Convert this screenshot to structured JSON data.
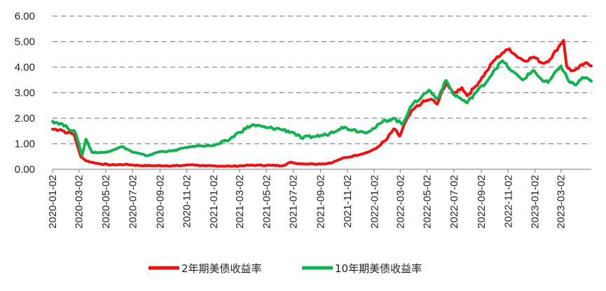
{
  "chart_data": {
    "type": "line",
    "title": "",
    "xlabel": "",
    "ylabel": "",
    "ylim": [
      0,
      6
    ],
    "grid": "horizontal dashed",
    "legend_position": "bottom",
    "y_ticks": [
      "0.00",
      "1.00",
      "2.00",
      "3.00",
      "4.00",
      "5.00",
      "6.00"
    ],
    "x_ticks": [
      "2020-01-02",
      "2020-03-02",
      "2020-05-02",
      "2020-07-02",
      "2020-09-02",
      "2020-11-02",
      "2021-01-02",
      "2021-03-02",
      "2021-05-02",
      "2021-07-02",
      "2021-09-02",
      "2021-11-02",
      "2022-01-02",
      "2022-03-02",
      "2022-05-02",
      "2022-07-02",
      "2022-09-02",
      "2022-11-02",
      "2023-01-02",
      "2023-03-02"
    ],
    "x_range": [
      "2020-01-02",
      "2023-05-10"
    ],
    "series": [
      {
        "name": "2年期美债收益率",
        "color": "#ee1111",
        "points": [
          [
            "2020-01-02",
            1.57
          ],
          [
            "2020-01-20",
            1.56
          ],
          [
            "2020-02-05",
            1.43
          ],
          [
            "2020-02-20",
            1.38
          ],
          [
            "2020-02-28",
            0.9
          ],
          [
            "2020-03-06",
            0.5
          ],
          [
            "2020-03-15",
            0.37
          ],
          [
            "2020-03-25",
            0.3
          ],
          [
            "2020-04-15",
            0.22
          ],
          [
            "2020-05-15",
            0.17
          ],
          [
            "2020-06-15",
            0.19
          ],
          [
            "2020-07-15",
            0.15
          ],
          [
            "2020-08-15",
            0.14
          ],
          [
            "2020-09-15",
            0.14
          ],
          [
            "2020-10-15",
            0.14
          ],
          [
            "2020-11-15",
            0.18
          ],
          [
            "2020-12-15",
            0.13
          ],
          [
            "2021-01-15",
            0.13
          ],
          [
            "2021-02-15",
            0.12
          ],
          [
            "2021-03-15",
            0.15
          ],
          [
            "2021-04-15",
            0.16
          ],
          [
            "2021-05-15",
            0.15
          ],
          [
            "2021-06-10",
            0.15
          ],
          [
            "2021-06-25",
            0.27
          ],
          [
            "2021-07-15",
            0.22
          ],
          [
            "2021-08-15",
            0.21
          ],
          [
            "2021-09-15",
            0.22
          ],
          [
            "2021-10-01",
            0.28
          ],
          [
            "2021-10-20",
            0.42
          ],
          [
            "2021-11-15",
            0.52
          ],
          [
            "2021-12-15",
            0.65
          ],
          [
            "2022-01-05",
            0.8
          ],
          [
            "2022-01-31",
            1.18
          ],
          [
            "2022-02-15",
            1.58
          ],
          [
            "2022-03-01",
            1.3
          ],
          [
            "2022-03-15",
            1.9
          ],
          [
            "2022-04-01",
            2.35
          ],
          [
            "2022-04-20",
            2.6
          ],
          [
            "2022-05-10",
            2.75
          ],
          [
            "2022-05-25",
            2.55
          ],
          [
            "2022-06-14",
            3.42
          ],
          [
            "2022-06-30",
            2.95
          ],
          [
            "2022-07-20",
            3.2
          ],
          [
            "2022-08-01",
            2.88
          ],
          [
            "2022-08-20",
            3.25
          ],
          [
            "2022-09-15",
            3.85
          ],
          [
            "2022-09-30",
            4.25
          ],
          [
            "2022-10-20",
            4.55
          ],
          [
            "2022-11-05",
            4.72
          ],
          [
            "2022-11-20",
            4.45
          ],
          [
            "2022-12-10",
            4.25
          ],
          [
            "2022-12-30",
            4.4
          ],
          [
            "2023-01-20",
            4.15
          ],
          [
            "2023-02-05",
            4.3
          ],
          [
            "2023-02-25",
            4.8
          ],
          [
            "2023-03-08",
            5.05
          ],
          [
            "2023-03-15",
            4.05
          ],
          [
            "2023-03-25",
            3.85
          ],
          [
            "2023-04-10",
            3.95
          ],
          [
            "2023-04-25",
            4.15
          ],
          [
            "2023-05-10",
            4.05
          ]
        ]
      },
      {
        "name": "10年期美债收益率",
        "color": "#11b050",
        "points": [
          [
            "2020-01-02",
            1.88
          ],
          [
            "2020-01-20",
            1.8
          ],
          [
            "2020-02-05",
            1.62
          ],
          [
            "2020-02-20",
            1.52
          ],
          [
            "2020-02-28",
            1.15
          ],
          [
            "2020-03-09",
            0.54
          ],
          [
            "2020-03-18",
            1.18
          ],
          [
            "2020-04-01",
            0.66
          ],
          [
            "2020-05-01",
            0.66
          ],
          [
            "2020-06-08",
            0.89
          ],
          [
            "2020-07-01",
            0.68
          ],
          [
            "2020-08-04",
            0.53
          ],
          [
            "2020-09-01",
            0.69
          ],
          [
            "2020-10-01",
            0.72
          ],
          [
            "2020-11-01",
            0.86
          ],
          [
            "2020-12-01",
            0.92
          ],
          [
            "2021-01-02",
            0.93
          ],
          [
            "2021-02-01",
            1.1
          ],
          [
            "2021-03-01",
            1.45
          ],
          [
            "2021-03-31",
            1.74
          ],
          [
            "2021-05-01",
            1.63
          ],
          [
            "2021-06-01",
            1.58
          ],
          [
            "2021-07-01",
            1.45
          ],
          [
            "2021-07-20",
            1.22
          ],
          [
            "2021-08-15",
            1.28
          ],
          [
            "2021-09-15",
            1.35
          ],
          [
            "2021-10-20",
            1.65
          ],
          [
            "2021-11-15",
            1.55
          ],
          [
            "2021-12-10",
            1.45
          ],
          [
            "2022-01-02",
            1.6
          ],
          [
            "2022-01-20",
            1.85
          ],
          [
            "2022-02-15",
            2.0
          ],
          [
            "2022-03-07",
            1.75
          ],
          [
            "2022-03-25",
            2.45
          ],
          [
            "2022-04-20",
            2.85
          ],
          [
            "2022-05-06",
            3.1
          ],
          [
            "2022-05-25",
            2.75
          ],
          [
            "2022-06-14",
            3.48
          ],
          [
            "2022-07-01",
            2.95
          ],
          [
            "2022-08-01",
            2.6
          ],
          [
            "2022-08-20",
            3.0
          ],
          [
            "2022-09-15",
            3.45
          ],
          [
            "2022-09-30",
            3.85
          ],
          [
            "2022-10-20",
            4.25
          ],
          [
            "2022-11-10",
            3.85
          ],
          [
            "2022-12-05",
            3.5
          ],
          [
            "2022-12-30",
            3.88
          ],
          [
            "2023-01-20",
            3.45
          ],
          [
            "2023-02-01",
            3.4
          ],
          [
            "2023-03-02",
            4.05
          ],
          [
            "2023-03-20",
            3.45
          ],
          [
            "2023-04-05",
            3.3
          ],
          [
            "2023-04-20",
            3.6
          ],
          [
            "2023-05-10",
            3.45
          ]
        ]
      }
    ]
  }
}
